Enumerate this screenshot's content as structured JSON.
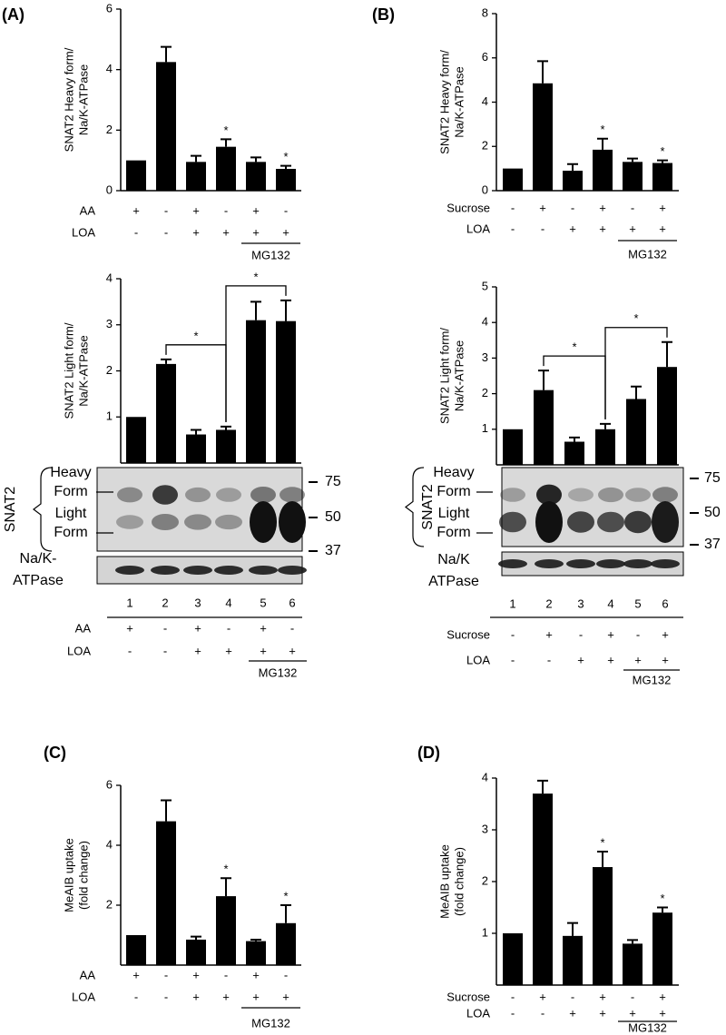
{
  "panel_labels": [
    "(A)",
    "(B)",
    "(C)",
    "(D)"
  ],
  "chart_data": [
    {
      "type": "bar",
      "ylabel": [
        "SNAT2 Heavy form/",
        "Na/K-ATPase"
      ],
      "categories": [
        null,
        null,
        null,
        null,
        null,
        null
      ],
      "values": [
        1,
        4.25,
        0.95,
        1.45,
        0.95,
        0.72
      ],
      "errors": [
        null,
        0.5,
        0.2,
        0.25,
        0.15,
        0.1
      ],
      "color": "#000000",
      "ylim": [
        0,
        6
      ],
      "yticks": [
        0,
        2,
        4,
        6
      ],
      "significance": [
        null,
        null,
        null,
        "*",
        null,
        "*"
      ],
      "conditions": [
        {
          "label": "AA",
          "signs": [
            "+",
            "-",
            "+",
            "-",
            "+",
            "-"
          ]
        },
        {
          "label": "LOA",
          "signs": [
            "-",
            "-",
            "+",
            "+",
            "+",
            "+"
          ]
        }
      ],
      "group_label": "MG132"
    },
    {
      "type": "bar",
      "ylabel": [
        "SNAT2 Heavy form/",
        "Na/K-ATPase"
      ],
      "categories": [
        null,
        null,
        null,
        null,
        null,
        null
      ],
      "values": [
        1,
        4.85,
        0.9,
        1.85,
        1.3,
        1.25
      ],
      "errors": [
        null,
        1.0,
        0.3,
        0.5,
        0.15,
        0.12
      ],
      "color": "#000000",
      "ylim": [
        0,
        8
      ],
      "yticks": [
        0,
        2,
        4,
        6,
        8
      ],
      "significance": [
        null,
        null,
        null,
        "*",
        null,
        "*"
      ],
      "conditions": [
        {
          "label": "Sucrose",
          "signs": [
            "-",
            "+",
            "-",
            "+",
            "-",
            "+"
          ]
        },
        {
          "label": "LOA",
          "signs": [
            "-",
            "-",
            "+",
            "+",
            "+",
            "+"
          ]
        }
      ],
      "group_label": "MG132"
    },
    {
      "type": "bar",
      "ylabel": [
        "SNAT2 Light form/",
        "Na/K-ATPase"
      ],
      "categories": [
        null,
        null,
        null,
        null,
        null,
        null
      ],
      "values": [
        1,
        2.15,
        0.62,
        0.72,
        3.1,
        3.08
      ],
      "errors": [
        null,
        0.1,
        0.1,
        0.07,
        0.4,
        0.45
      ],
      "color": "#000000",
      "ylim": [
        0,
        4
      ],
      "yticks": [
        1,
        2,
        3,
        4
      ],
      "brackets": [
        {
          "from": 1,
          "to": 3,
          "label": "*"
        },
        {
          "from": 3,
          "to": 5,
          "label": "*"
        }
      ]
    },
    {
      "type": "bar",
      "ylabel": [
        "SNAT2 Light form/",
        "Na/K-ATPase"
      ],
      "categories": [
        null,
        null,
        null,
        null,
        null,
        null
      ],
      "values": [
        1,
        2.1,
        0.65,
        1.0,
        1.85,
        2.75
      ],
      "errors": [
        null,
        0.55,
        0.12,
        0.15,
        0.35,
        0.7
      ],
      "color": "#000000",
      "ylim": [
        0,
        5
      ],
      "yticks": [
        1,
        2,
        3,
        4,
        5
      ],
      "brackets": [
        {
          "from": 1,
          "to": 3,
          "label": "*"
        },
        {
          "from": 3,
          "to": 5,
          "label": "*"
        }
      ]
    },
    {
      "type": "bar",
      "ylabel": [
        "MeAIB uptake",
        "(fold change)"
      ],
      "categories": [
        null,
        null,
        null,
        null,
        null,
        null
      ],
      "values": [
        1,
        4.8,
        0.85,
        2.3,
        0.8,
        1.4
      ],
      "errors": [
        null,
        0.7,
        0.1,
        0.6,
        0.05,
        0.6
      ],
      "color": "#000000",
      "ylim": [
        0,
        6
      ],
      "yticks": [
        2,
        4,
        6
      ],
      "significance": [
        null,
        null,
        null,
        "*",
        null,
        "*"
      ],
      "conditions": [
        {
          "label": "AA",
          "signs": [
            "+",
            "-",
            "+",
            "-",
            "+",
            "-"
          ]
        },
        {
          "label": "LOA",
          "signs": [
            "-",
            "-",
            "+",
            "+",
            "+",
            "+"
          ]
        }
      ],
      "group_label": "MG132"
    },
    {
      "type": "bar",
      "ylabel": [
        "MeAIB uptake",
        "(fold change)"
      ],
      "categories": [
        null,
        null,
        null,
        null,
        null,
        null
      ],
      "values": [
        1,
        3.7,
        0.95,
        2.28,
        0.8,
        1.4
      ],
      "errors": [
        null,
        0.25,
        0.25,
        0.3,
        0.07,
        0.1
      ],
      "color": "#000000",
      "ylim": [
        0,
        4
      ],
      "yticks": [
        1,
        2,
        3,
        4
      ],
      "significance": [
        null,
        null,
        null,
        "*",
        null,
        "*"
      ],
      "conditions": [
        {
          "label": "Sucrose",
          "signs": [
            "-",
            "+",
            "-",
            "+",
            "-",
            "+"
          ]
        },
        {
          "label": "LOA",
          "signs": [
            "-",
            "-",
            "+",
            "+",
            "+",
            "+"
          ]
        }
      ],
      "group_label": "MG132"
    }
  ],
  "blots": [
    {
      "protein": "SNAT2",
      "form_labels": [
        "Heavy",
        "Form",
        "Light",
        "Form"
      ],
      "markers": [
        75,
        50,
        37
      ],
      "loading": [
        "Na/K-",
        "ATPase"
      ],
      "lanes": [
        1,
        2,
        3,
        4,
        5,
        6
      ],
      "conditions": [
        {
          "label": "AA",
          "signs": [
            "+",
            "-",
            "+",
            "-",
            "+",
            "-"
          ]
        },
        {
          "label": "LOA",
          "signs": [
            "-",
            "-",
            "+",
            "+",
            "+",
            "+"
          ]
        }
      ],
      "group_label": "MG132"
    },
    {
      "protein": "SNAT2",
      "form_labels": [
        "Heavy",
        "Form",
        "Light",
        "Form"
      ],
      "markers": [
        75,
        50,
        37
      ],
      "loading": [
        "Na/K",
        "ATPase"
      ],
      "lanes": [
        1,
        2,
        3,
        4,
        5,
        6
      ],
      "conditions": [
        {
          "label": "Sucrose",
          "signs": [
            "-",
            "+",
            "-",
            "+",
            "-",
            "+"
          ]
        },
        {
          "label": "LOA",
          "signs": [
            "-",
            "-",
            "+",
            "+",
            "+",
            "+"
          ]
        }
      ],
      "group_label": "MG132"
    }
  ]
}
